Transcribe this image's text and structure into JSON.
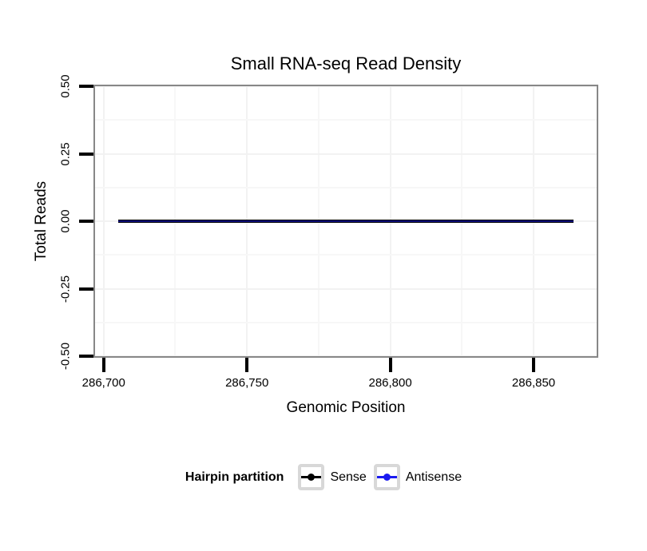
{
  "chart_data": {
    "type": "line",
    "title": "Small RNA-seq Read Density",
    "xlabel": "Genomic Position",
    "ylabel": "Total Reads",
    "xlim": [
      286697,
      286872
    ],
    "ylim": [
      -0.5,
      0.5
    ],
    "x_ticks": [
      {
        "value": 286700,
        "label": "286,700"
      },
      {
        "value": 286750,
        "label": "286,750"
      },
      {
        "value": 286800,
        "label": "286,800"
      },
      {
        "value": 286850,
        "label": "286,850"
      }
    ],
    "y_ticks": [
      {
        "value": 0.5,
        "label": "0.50"
      },
      {
        "value": 0.25,
        "label": "0.25"
      },
      {
        "value": 0,
        "label": "0.00"
      },
      {
        "value": -0.25,
        "label": "-0.25"
      },
      {
        "value": -0.5,
        "label": "-0.50"
      }
    ],
    "grid": {
      "major": true,
      "minor": true
    },
    "series": [
      {
        "name": "Sense",
        "color": "#000000",
        "x": [
          286705,
          286864
        ],
        "y": [
          0,
          0
        ]
      },
      {
        "name": "Antisense",
        "color": "#1A1AF0",
        "x": [
          286705,
          286864
        ],
        "y": [
          0,
          0
        ]
      }
    ],
    "legend": {
      "title": "Hairpin partition",
      "position": "bottom",
      "entries": [
        "Sense",
        "Antisense"
      ]
    }
  },
  "colors": {
    "background": "#FFFFFF",
    "panel_border": "#878787",
    "tick": "#000000",
    "grid_major": "#F2F2F2",
    "grid_minor": "#F7F7F7",
    "legend_key_border": "#D8D8D8"
  }
}
